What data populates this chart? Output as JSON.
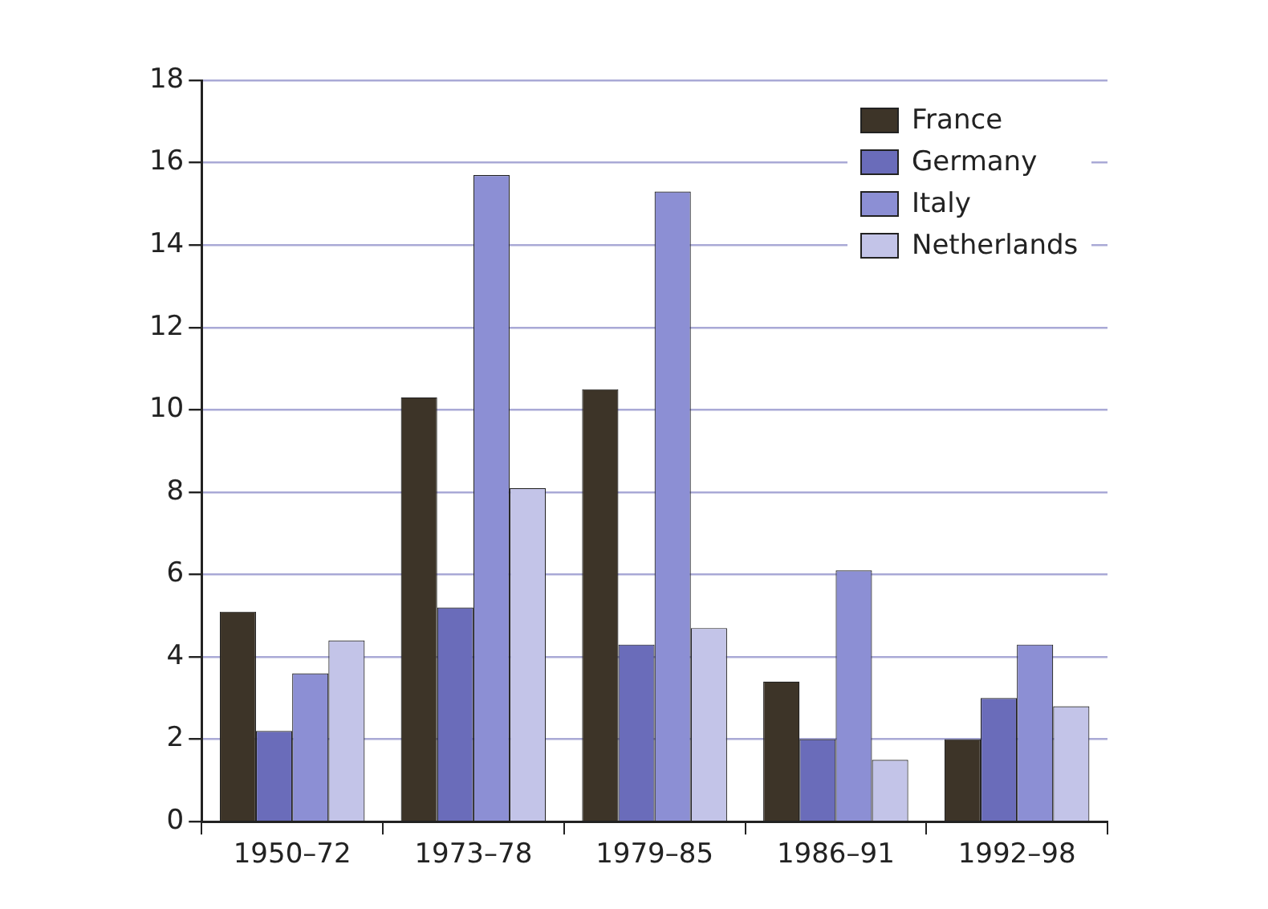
{
  "chart_data": {
    "type": "bar",
    "categories": [
      "1950–72",
      "1973–78",
      "1979–85",
      "1986–91",
      "1992–98"
    ],
    "series": [
      {
        "name": "France",
        "color": "#3d3428",
        "values": [
          5.1,
          10.3,
          10.5,
          3.4,
          2.0
        ]
      },
      {
        "name": "Germany",
        "color": "#6a6cba",
        "values": [
          2.2,
          5.2,
          4.3,
          2.0,
          3.0
        ]
      },
      {
        "name": "Italy",
        "color": "#8c8fd4",
        "values": [
          3.6,
          15.7,
          15.3,
          6.1,
          4.3
        ]
      },
      {
        "name": "Netherlands",
        "color": "#c3c4e8",
        "values": [
          4.4,
          8.1,
          4.7,
          1.5,
          2.8
        ]
      }
    ],
    "ylim": [
      0,
      18
    ],
    "yticks": [
      0,
      2,
      4,
      6,
      8,
      10,
      12,
      14,
      16,
      18
    ],
    "grid": "y",
    "legend": "top right"
  }
}
